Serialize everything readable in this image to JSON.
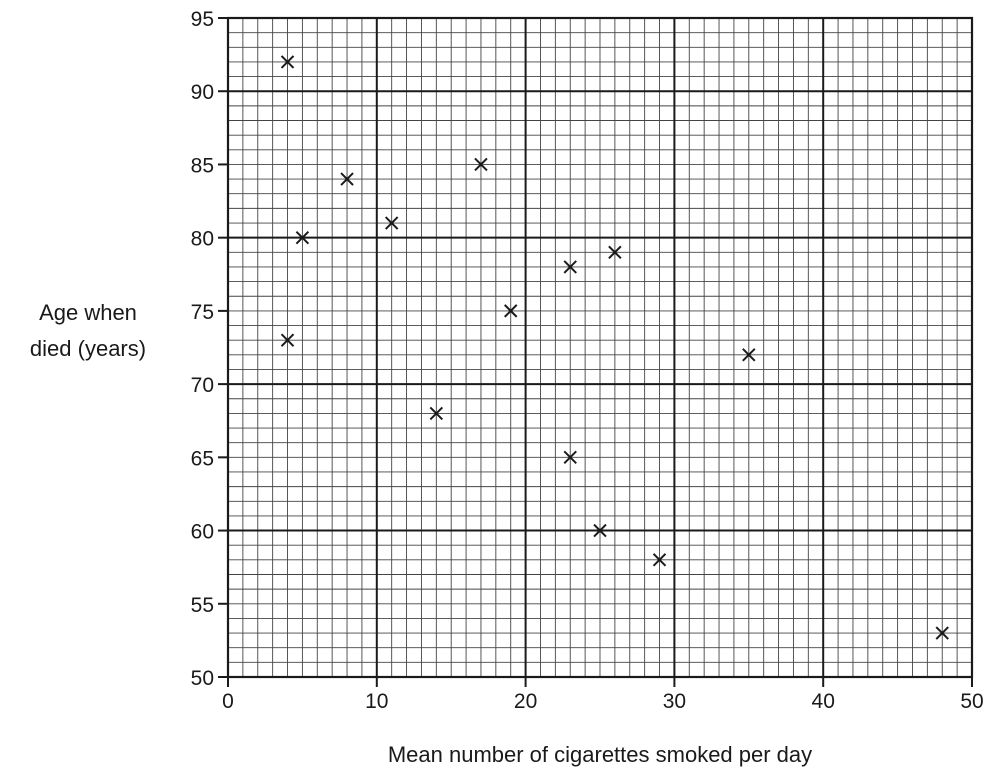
{
  "chart_data": {
    "type": "scatter",
    "title": "",
    "xlabel": "Mean number of cigarettes smoked per day",
    "ylabel_lines": [
      "Age when",
      "died (years)"
    ],
    "xlim": [
      0,
      50
    ],
    "ylim": [
      50,
      95
    ],
    "x_ticks": [
      0,
      10,
      20,
      30,
      40,
      50
    ],
    "y_ticks": [
      50,
      55,
      60,
      65,
      70,
      75,
      80,
      85,
      90,
      95
    ],
    "grid": true,
    "minor_grid_step": 1,
    "major_grid_x_step": 10,
    "major_grid_y_step": 10,
    "marker": "x",
    "points": [
      {
        "x": 4,
        "y": 92
      },
      {
        "x": 4,
        "y": 73
      },
      {
        "x": 5,
        "y": 80
      },
      {
        "x": 8,
        "y": 84
      },
      {
        "x": 11,
        "y": 81
      },
      {
        "x": 14,
        "y": 68
      },
      {
        "x": 17,
        "y": 85
      },
      {
        "x": 19,
        "y": 75
      },
      {
        "x": 23,
        "y": 78
      },
      {
        "x": 23,
        "y": 65
      },
      {
        "x": 25,
        "y": 60
      },
      {
        "x": 26,
        "y": 79
      },
      {
        "x": 29,
        "y": 58
      },
      {
        "x": 35,
        "y": 72
      },
      {
        "x": 48,
        "y": 53
      }
    ]
  },
  "colors": {
    "ink": "#1a1a1a",
    "minor_grid": "#444444",
    "background": "#ffffff"
  }
}
